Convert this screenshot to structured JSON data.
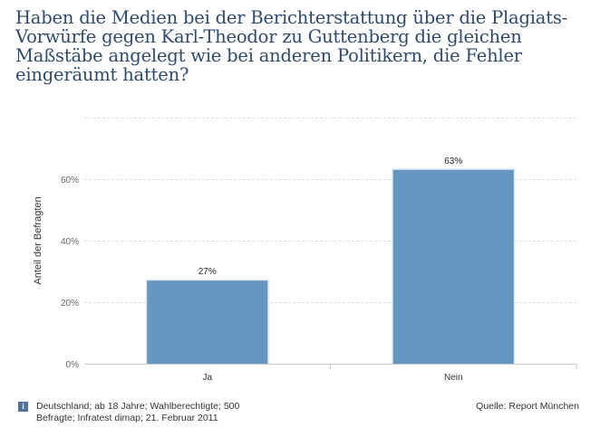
{
  "chart_data": {
    "type": "bar",
    "title": "Haben die Medien bei der Berichterstattung über die Plagiats-Vorwürfe gegen Karl-Theodor zu Guttenberg die gleichen Maßstäbe angelegt wie bei anderen Politikern, die Fehler eingeräumt hatten?",
    "categories": [
      "Ja",
      "Nein"
    ],
    "values": [
      27,
      63
    ],
    "data_labels": [
      "27%",
      "63%"
    ],
    "xlabel": "",
    "ylabel": "Anteil der Befragten",
    "ylim": [
      0,
      80
    ],
    "yticks": [
      0,
      20,
      40,
      60
    ],
    "ytick_labels": [
      "0%",
      "20%",
      "40%",
      "60%"
    ],
    "grid": true,
    "bar_color": "#6596bf",
    "legend": "none"
  },
  "footer": {
    "info_icon": "i",
    "note": "Deutschland; ab 18 Jahre; Wahlberechtigte; 500 Befragte; Infratest dimap; 21. Februar 2011",
    "source": "Quelle: Report München"
  }
}
